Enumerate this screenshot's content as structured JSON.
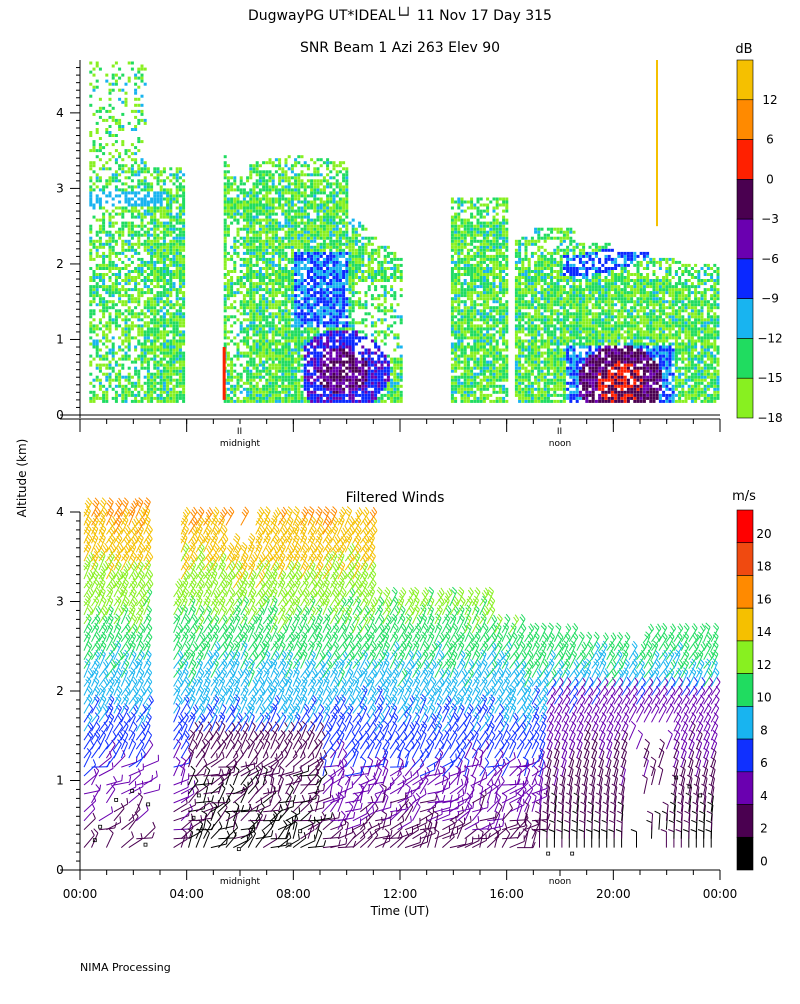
{
  "header": {
    "title": "DugwayPG UT*IDEAL└┘  11 Nov 17 Day 315",
    "footer": "NIMA Processing"
  },
  "chart_data": [
    {
      "type": "heatmap",
      "title": "SNR Beam 1 Azi 263 Elev 90",
      "ylabel": "Altitude (km)",
      "yticks": [
        "0",
        "1",
        "2",
        "3",
        "4"
      ],
      "ylim": [
        0,
        4.7
      ],
      "xlim_hours": [
        0,
        24
      ],
      "time_markers": [
        {
          "label": "midnight",
          "hour": 6,
          "symbol": "II"
        },
        {
          "label": "noon",
          "hour": 18,
          "symbol": "II"
        }
      ],
      "colorbar": {
        "unit": "dB",
        "labels": [
          "12",
          "6",
          "0",
          "−3",
          "−6",
          "−9",
          "−12",
          "−15",
          "−18"
        ],
        "colors": [
          "#f5c000",
          "#ff8a00",
          "#ff2000",
          "#4a0050",
          "#6a00b0",
          "#0a28ff",
          "#18b4f0",
          "#20dc60",
          "#88f020"
        ]
      }
    },
    {
      "type": "scatter",
      "title": "Filtered Winds",
      "xlabel": "Time (UT)",
      "ylabel": "Altitude (km)",
      "xticks": [
        "00:00",
        "04:00",
        "08:00",
        "12:00",
        "16:00",
        "20:00",
        "00:00"
      ],
      "yticks": [
        "0",
        "1",
        "2",
        "3",
        "4"
      ],
      "ylim": [
        0,
        4
      ],
      "xlim_hours": [
        0,
        24
      ],
      "time_markers": [
        {
          "label": "midnight",
          "hour": 6
        },
        {
          "label": "noon",
          "hour": 18
        }
      ],
      "colorbar": {
        "unit": "m/s",
        "labels": [
          "20",
          "18",
          "16",
          "14",
          "12",
          "10",
          "8",
          "6",
          "4",
          "2",
          "0"
        ],
        "colors": [
          "#000000",
          "#4a0050",
          "#6a00b0",
          "#1030ff",
          "#18b4f0",
          "#20dc60",
          "#88f020",
          "#f5c000",
          "#ff8a00",
          "#f04a10",
          "#ff0000"
        ]
      }
    }
  ]
}
